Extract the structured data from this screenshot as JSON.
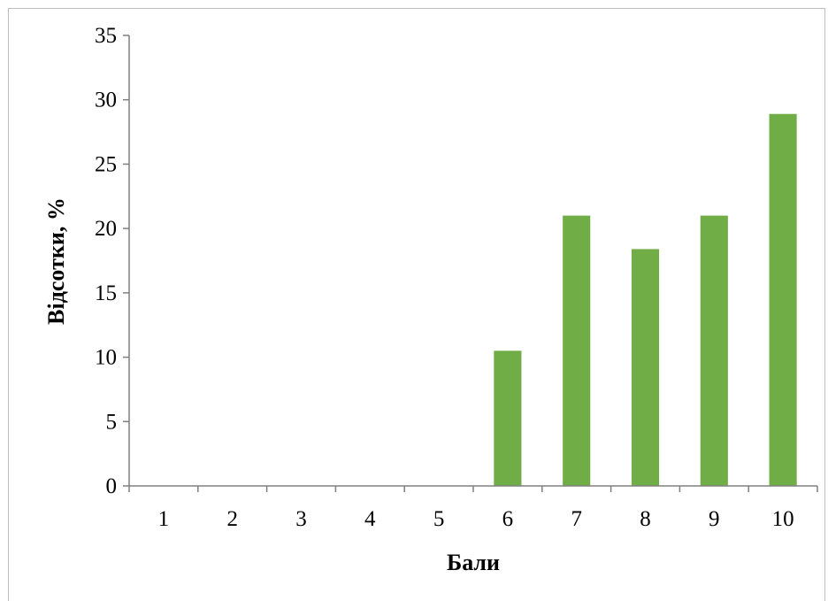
{
  "chart_data": {
    "type": "bar",
    "title": "",
    "xlabel": "Бали",
    "ylabel": "Відсотки, %",
    "categories": [
      "1",
      "2",
      "3",
      "4",
      "5",
      "6",
      "7",
      "8",
      "9",
      "10"
    ],
    "values": [
      0,
      0,
      0,
      0,
      0,
      10.5,
      21.0,
      18.4,
      21.0,
      28.9
    ],
    "ylim": [
      0,
      35
    ],
    "yticks": [
      "0",
      "5",
      "10",
      "15",
      "20",
      "25",
      "30",
      "35"
    ],
    "grid": false,
    "legend": "none",
    "bar_color": "#70ad47",
    "axis_color": "#808080"
  }
}
